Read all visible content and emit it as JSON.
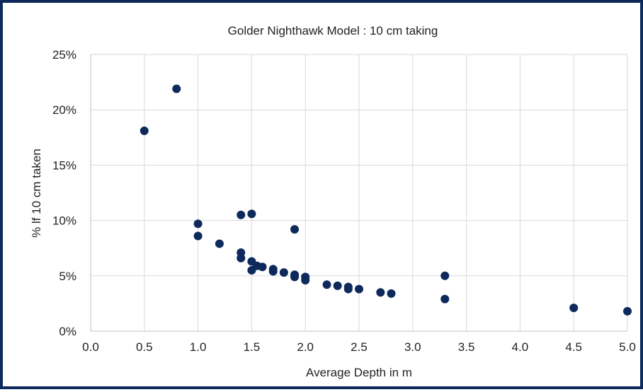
{
  "chart_data": {
    "type": "scatter",
    "title": "Golder Nighthawk Model : 10 cm taking",
    "xlabel": "Average Depth in m",
    "ylabel": "% lf 10 cm taken",
    "xlim": [
      0,
      5
    ],
    "ylim": [
      0,
      0.25
    ],
    "x_ticks": [
      "0.0",
      "0.5",
      "1.0",
      "1.5",
      "2.0",
      "2.5",
      "3.0",
      "3.5",
      "4.0",
      "4.5",
      "5.0"
    ],
    "y_ticks": [
      "0%",
      "5%",
      "10%",
      "15%",
      "20%",
      "25%"
    ],
    "grid": true,
    "legend": "none",
    "marker_color": "#0e2a5c",
    "frame_color": "#0e2a5c",
    "points": [
      {
        "x": 0.5,
        "y": 0.181
      },
      {
        "x": 0.8,
        "y": 0.219
      },
      {
        "x": 1.0,
        "y": 0.097
      },
      {
        "x": 1.0,
        "y": 0.086
      },
      {
        "x": 1.2,
        "y": 0.079
      },
      {
        "x": 1.4,
        "y": 0.105
      },
      {
        "x": 1.4,
        "y": 0.071
      },
      {
        "x": 1.4,
        "y": 0.066
      },
      {
        "x": 1.5,
        "y": 0.106
      },
      {
        "x": 1.5,
        "y": 0.063
      },
      {
        "x": 1.5,
        "y": 0.055
      },
      {
        "x": 1.55,
        "y": 0.059
      },
      {
        "x": 1.6,
        "y": 0.058
      },
      {
        "x": 1.7,
        "y": 0.056
      },
      {
        "x": 1.7,
        "y": 0.054
      },
      {
        "x": 1.8,
        "y": 0.053
      },
      {
        "x": 1.9,
        "y": 0.092
      },
      {
        "x": 1.9,
        "y": 0.051
      },
      {
        "x": 1.9,
        "y": 0.049
      },
      {
        "x": 2.0,
        "y": 0.049
      },
      {
        "x": 2.0,
        "y": 0.046
      },
      {
        "x": 2.2,
        "y": 0.042
      },
      {
        "x": 2.3,
        "y": 0.041
      },
      {
        "x": 2.4,
        "y": 0.04
      },
      {
        "x": 2.4,
        "y": 0.038
      },
      {
        "x": 2.5,
        "y": 0.038
      },
      {
        "x": 2.7,
        "y": 0.035
      },
      {
        "x": 2.8,
        "y": 0.034
      },
      {
        "x": 3.3,
        "y": 0.05
      },
      {
        "x": 3.3,
        "y": 0.029
      },
      {
        "x": 4.5,
        "y": 0.021
      },
      {
        "x": 5.0,
        "y": 0.018
      }
    ]
  }
}
